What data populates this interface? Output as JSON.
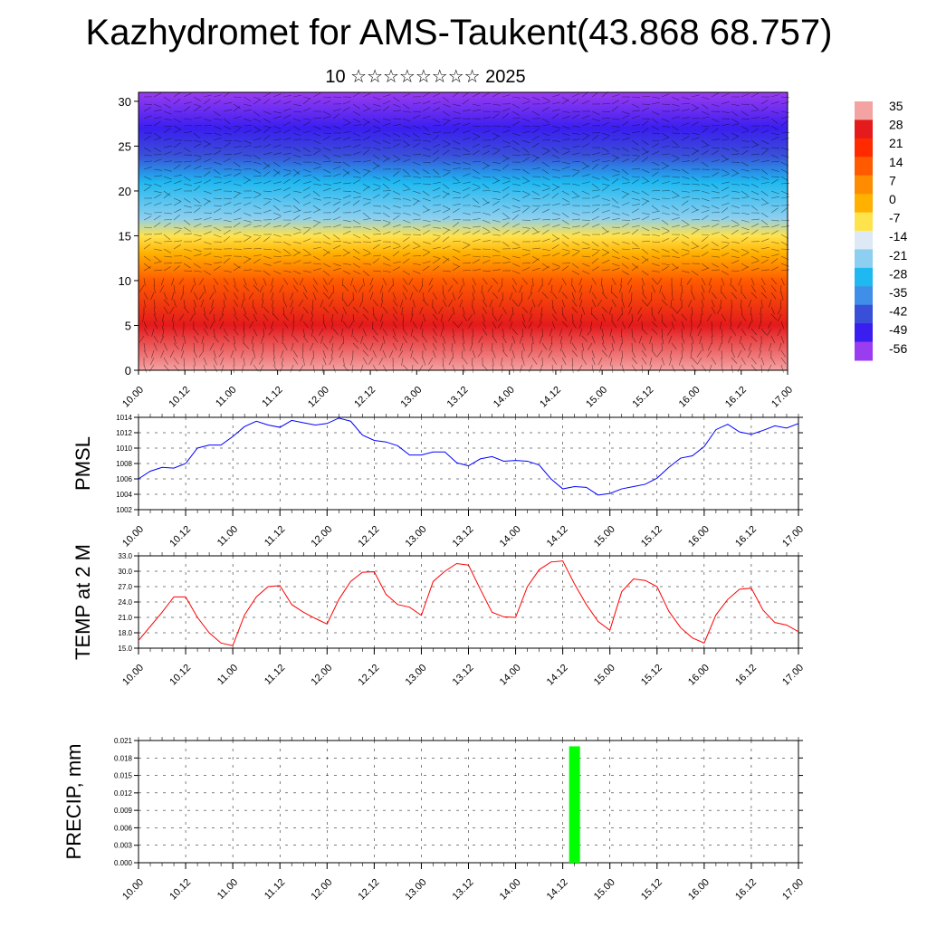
{
  "header": {
    "title": "Kazhydromet for AMS-Taukent(43.868 68.757)",
    "subtitle": "10 ☆☆☆☆☆☆☆☆ 2025"
  },
  "time_ticks": [
    "10.00",
    "10.12",
    "11.00",
    "11.12",
    "12.00",
    "12.12",
    "13.00",
    "13.12",
    "14.00",
    "14.12",
    "15.00",
    "15.12",
    "16.00",
    "16.12",
    "17.00"
  ],
  "chart_data": [
    {
      "type": "heatmap",
      "title": "",
      "x_ticks": [
        "10.00",
        "10.12",
        "11.00",
        "11.12",
        "12.00",
        "12.12",
        "13.00",
        "13.12",
        "14.00",
        "14.12",
        "15.00",
        "15.12",
        "16.00",
        "16.12",
        "17.00"
      ],
      "y_ticks": [
        0,
        5,
        10,
        15,
        20,
        25,
        30
      ],
      "ylim": [
        0,
        31
      ],
      "colorbar": {
        "labels": [
          "35",
          "28",
          "21",
          "14",
          "7",
          "0",
          "-7",
          "-14",
          "-21",
          "-28",
          "-35",
          "-42",
          "-49",
          "-56"
        ],
        "colors": [
          "#f4a3a3",
          "#e41a1c",
          "#ff2a00",
          "#ff5a00",
          "#ff8c00",
          "#ffb000",
          "#ffe34d",
          "#dde9f5",
          "#8ccff0",
          "#1fb8f0",
          "#3f8fe8",
          "#3a4fd8",
          "#3a1ef0",
          "#9a3cf0"
        ]
      },
      "vertical_profile": [
        {
          "level": 0,
          "value": 35
        },
        {
          "level": 5,
          "value": 26
        },
        {
          "level": 10,
          "value": 12
        },
        {
          "level": 13,
          "value": 2
        },
        {
          "level": 15,
          "value": -8
        },
        {
          "level": 17,
          "value": -20
        },
        {
          "level": 21,
          "value": -30
        },
        {
          "level": 24,
          "value": -42
        },
        {
          "level": 27,
          "value": -52
        },
        {
          "level": 31,
          "value": -58
        }
      ],
      "overlay": "wind barbs"
    },
    {
      "type": "line",
      "ylabel": "PMSL",
      "ylim": [
        1002,
        1014
      ],
      "y_ticks": [
        1002,
        1004,
        1006,
        1008,
        1010,
        1012,
        1014
      ],
      "x_ticks": [
        "10.00",
        "10.12",
        "11.00",
        "11.12",
        "12.00",
        "12.12",
        "13.00",
        "13.12",
        "14.00",
        "14.12",
        "15.00",
        "15.12",
        "16.00",
        "16.12",
        "17.00"
      ],
      "series": [
        {
          "color": "#0000ff",
          "x": [
            0,
            3,
            6,
            9,
            12,
            15,
            18,
            21,
            24,
            27,
            30,
            33,
            36,
            39,
            42,
            45,
            48,
            51,
            54,
            57,
            60,
            63,
            66,
            69,
            72,
            75,
            78,
            81,
            84,
            87,
            90,
            93,
            96,
            99,
            102,
            105,
            108,
            111,
            114,
            117,
            120,
            123,
            126,
            129,
            132,
            135,
            138,
            141,
            144,
            147,
            150,
            153,
            156,
            159,
            162,
            165,
            168
          ],
          "values": [
            1006.0,
            1007.0,
            1007.5,
            1007.4,
            1008.0,
            1010.0,
            1010.4,
            1010.4,
            1011.5,
            1012.8,
            1013.5,
            1013.0,
            1012.7,
            1013.6,
            1013.3,
            1013.0,
            1013.2,
            1013.9,
            1013.5,
            1011.7,
            1011.0,
            1010.8,
            1010.3,
            1009.1,
            1009.1,
            1009.5,
            1009.5,
            1008.1,
            1007.7,
            1008.6,
            1008.9,
            1008.3,
            1008.4,
            1008.3,
            1007.8,
            1006.0,
            1004.7,
            1005.0,
            1004.9,
            1003.9,
            1004.1,
            1004.7,
            1005.0,
            1005.3,
            1006.1,
            1007.5,
            1008.7,
            1009.0,
            1010.2,
            1012.4,
            1013.1,
            1012.1,
            1011.8,
            1012.3,
            1012.9,
            1012.6,
            1013.2
          ]
        }
      ]
    },
    {
      "type": "line",
      "ylabel": "TEMP at 2 M",
      "ylim": [
        15.0,
        33.0
      ],
      "y_ticks": [
        "15.0",
        "18.0",
        "21.0",
        "24.0",
        "27.0",
        "30.0",
        "33.0"
      ],
      "x_ticks": [
        "10.00",
        "10.12",
        "11.00",
        "11.12",
        "12.00",
        "12.12",
        "13.00",
        "13.12",
        "14.00",
        "14.12",
        "15.00",
        "15.12",
        "16.00",
        "16.12",
        "17.00"
      ],
      "series": [
        {
          "color": "#ff0000",
          "x": [
            0,
            6,
            9,
            12,
            15,
            18,
            21,
            24,
            27,
            30,
            33,
            36,
            39,
            42,
            45,
            48,
            51,
            54,
            57,
            60,
            63,
            66,
            69,
            72,
            75,
            78,
            81,
            84,
            87,
            90,
            93,
            96,
            99,
            102,
            105,
            108,
            111,
            114,
            117,
            120,
            123,
            126,
            129,
            132,
            135,
            138,
            141,
            144,
            147,
            150,
            153,
            156,
            159,
            162,
            165,
            168
          ],
          "values": [
            16.5,
            22.0,
            25.0,
            25.0,
            21.0,
            18.0,
            16.0,
            15.5,
            21.5,
            25.0,
            27.0,
            27.2,
            23.5,
            22.0,
            20.8,
            19.7,
            24.5,
            28.0,
            29.8,
            29.9,
            25.5,
            23.5,
            23.0,
            21.4,
            28.0,
            30.0,
            31.5,
            31.2,
            26.5,
            22.0,
            21.1,
            21.0,
            27.0,
            30.3,
            31.8,
            32.0,
            27.5,
            23.5,
            20.2,
            18.5,
            26.0,
            28.5,
            28.2,
            27.0,
            22.2,
            19.0,
            17.0,
            16.0,
            21.5,
            24.5,
            26.5,
            26.7,
            22.4,
            20.0,
            19.5,
            18.2
          ]
        }
      ]
    },
    {
      "type": "bar",
      "ylabel": "PRECIP, mm",
      "ylim": [
        0,
        0.021
      ],
      "y_ticks": [
        "0.000",
        "0.003",
        "0.006",
        "0.009",
        "0.012",
        "0.015",
        "0.018",
        "0.021"
      ],
      "x_ticks": [
        "10.00",
        "10.12",
        "11.00",
        "11.12",
        "12.00",
        "12.12",
        "13.00",
        "13.12",
        "14.00",
        "14.12",
        "15.00",
        "15.12",
        "16.00",
        "16.12",
        "17.00"
      ],
      "series": [
        {
          "color": "#00ff00",
          "x": [
            111
          ],
          "values": [
            0.02
          ]
        }
      ]
    }
  ]
}
